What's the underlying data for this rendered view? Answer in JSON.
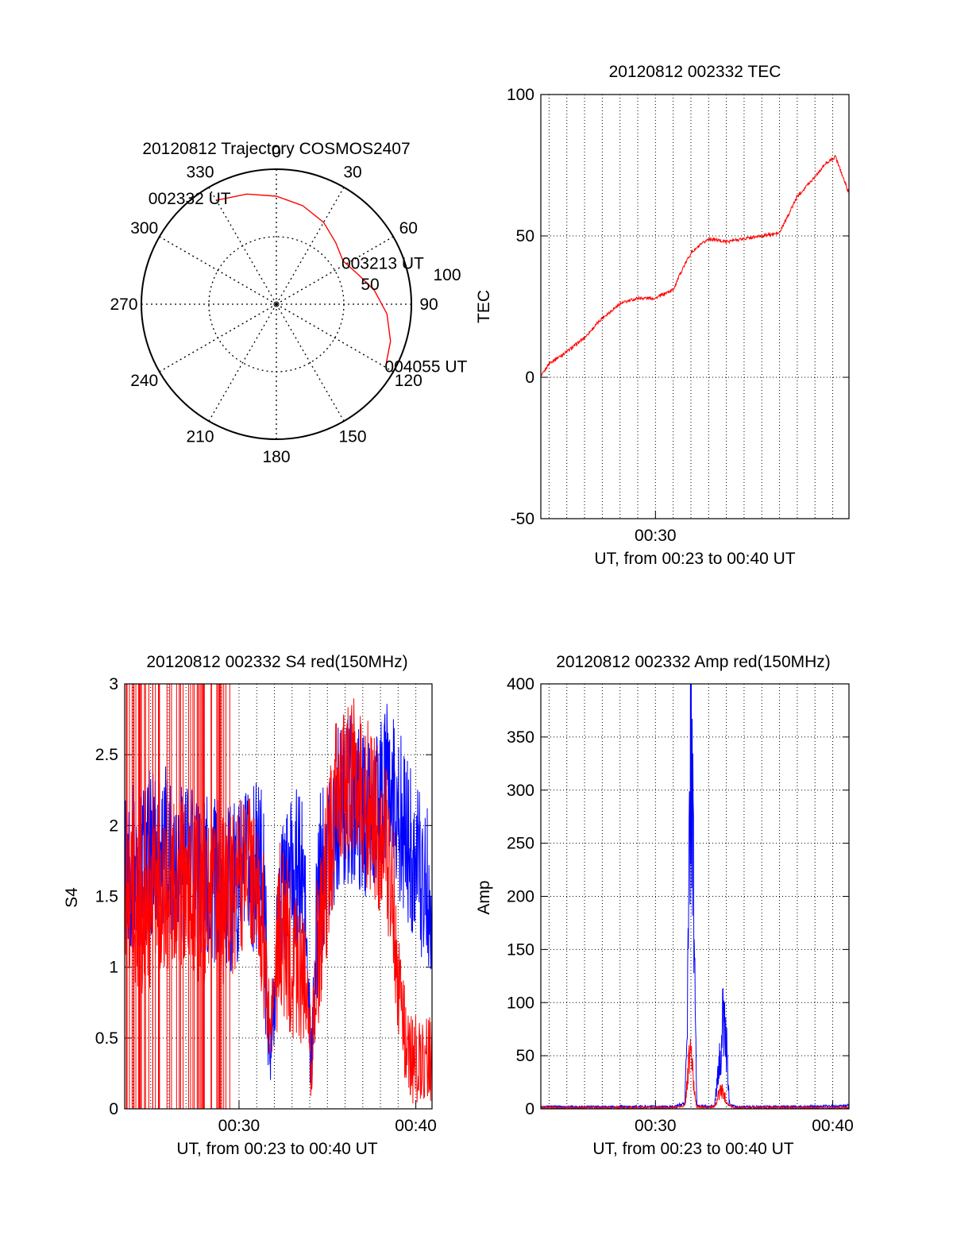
{
  "colors": {
    "red": "#ff0000",
    "blue": "#0000ff",
    "axis": "#000000"
  },
  "chart_data": [
    {
      "id": "trajectory",
      "type": "scatter",
      "projection": "polar",
      "title": "20120812 Trajectory COSMOS2407",
      "azimuth_labels": [
        "0",
        "30",
        "60",
        "90",
        "120",
        "150",
        "180",
        "210",
        "240",
        "270",
        "300",
        "330"
      ],
      "radial_labels": [
        "50",
        "100"
      ],
      "track": [
        {
          "az": 330,
          "el": 10
        },
        {
          "az": 345,
          "el": 14
        },
        {
          "az": 0,
          "el": 18
        },
        {
          "az": 15,
          "el": 22
        },
        {
          "az": 30,
          "el": 27
        },
        {
          "az": 44,
          "el": 33
        },
        {
          "az": 57,
          "el": 37
        },
        {
          "az": 70,
          "el": 32
        },
        {
          "az": 82,
          "el": 24
        },
        {
          "az": 95,
          "el": 16
        },
        {
          "az": 108,
          "el": 10
        },
        {
          "az": 118,
          "el": 7
        }
      ],
      "annotations": [
        {
          "text": "002332 UT",
          "az": 331,
          "el": 10
        },
        {
          "text": "003213 UT",
          "az": 57,
          "el": 37
        },
        {
          "text": "004055 UT",
          "az": 118,
          "el": 7
        }
      ]
    },
    {
      "id": "tec",
      "type": "line",
      "title": "20120812 002332 TEC",
      "ylabel": "TEC",
      "xlabel": "UT, from 00:23 to 00:40 UT",
      "xlim": [
        "00:23:32",
        "00:40:55"
      ],
      "ylim": [
        -50,
        100
      ],
      "yticks": [
        "-50",
        "0",
        "50",
        "100"
      ],
      "xticks": [
        "00:30"
      ],
      "grid": true,
      "series": [
        {
          "color": "#ff0000",
          "x": [
            "00:23:32",
            "00:24:00",
            "00:25:00",
            "00:26:00",
            "00:27:00",
            "00:28:00",
            "00:29:00",
            "00:30:00",
            "00:31:00",
            "00:31:30",
            "00:32:00",
            "00:33:00",
            "00:34:00",
            "00:35:00",
            "00:36:00",
            "00:37:00",
            "00:38:00",
            "00:39:00",
            "00:39:40",
            "00:40:10",
            "00:40:55"
          ],
          "values": [
            0,
            5,
            9,
            14,
            21,
            26,
            28,
            28,
            31,
            38,
            44,
            49,
            48,
            49,
            50,
            51,
            64,
            71,
            76,
            78,
            65
          ]
        }
      ]
    },
    {
      "id": "s4",
      "type": "line",
      "title": "20120812 002332 S4 red(150MHz)",
      "ylabel": "S4",
      "xlabel": "UT, from 00:23 to 00:40 UT",
      "xlim": [
        "00:23:32",
        "00:40:55"
      ],
      "ylim": [
        0,
        3
      ],
      "yticks": [
        "0",
        "0.5",
        "1",
        "1.5",
        "2",
        "2.5",
        "3"
      ],
      "xticks": [
        "00:30",
        "00:40"
      ],
      "grid": true,
      "series": [
        {
          "color": "#0000ff",
          "x": [
            "00:23:32",
            "00:24:30",
            "00:25:30",
            "00:26:30",
            "00:27:30",
            "00:28:30",
            "00:29:30",
            "00:30:30",
            "00:31:20",
            "00:31:45",
            "00:32:20",
            "00:33:00",
            "00:33:40",
            "00:34:05",
            "00:34:30",
            "00:35:30",
            "00:36:30",
            "00:37:30",
            "00:38:30",
            "00:39:30",
            "00:40:55"
          ],
          "values": [
            1.65,
            1.75,
            1.85,
            1.8,
            1.7,
            1.6,
            1.55,
            1.65,
            1.75,
            0.25,
            1.5,
            1.7,
            1.6,
            0.25,
            1.6,
            2.1,
            2.2,
            2.0,
            2.3,
            1.9,
            1.5
          ]
        },
        {
          "color": "#ff0000",
          "x": [
            "00:23:32",
            "00:24:30",
            "00:25:30",
            "00:26:30",
            "00:27:30",
            "00:28:30",
            "00:29:30",
            "00:30:30",
            "00:31:20",
            "00:31:45",
            "00:32:20",
            "00:33:00",
            "00:33:40",
            "00:34:05",
            "00:34:30",
            "00:35:30",
            "00:36:30",
            "00:37:30",
            "00:38:30",
            "00:39:30",
            "00:40:55"
          ],
          "values": [
            1.6,
            1.4,
            1.5,
            1.6,
            1.5,
            1.4,
            1.5,
            1.8,
            1.3,
            0.5,
            1.3,
            1.1,
            1.05,
            0.35,
            1.2,
            2.2,
            2.3,
            2.1,
            1.8,
            0.35,
            0.35
          ]
        }
      ]
    },
    {
      "id": "amp",
      "type": "line",
      "title": "20120812 002332 Amp red(150MHz)",
      "ylabel": "Amp",
      "xlabel": "UT, from 00:23 to 00:40 UT",
      "xlim": [
        "00:23:32",
        "00:40:55"
      ],
      "ylim": [
        0,
        400
      ],
      "yticks": [
        "0",
        "50",
        "100",
        "150",
        "200",
        "250",
        "300",
        "350",
        "400"
      ],
      "xticks": [
        "00:30",
        "00:40"
      ],
      "grid": true,
      "series": [
        {
          "color": "#0000ff",
          "x": [
            "00:23:32",
            "00:30:00",
            "00:31:00",
            "00:31:40",
            "00:31:52",
            "00:32:00",
            "00:32:08",
            "00:32:20",
            "00:33:00",
            "00:33:20",
            "00:33:40",
            "00:33:50",
            "00:34:00",
            "00:34:10",
            "00:34:30",
            "00:36:00",
            "00:38:00",
            "00:40:55"
          ],
          "values": [
            2,
            2,
            2,
            5,
            150,
            390,
            220,
            3,
            2,
            3,
            50,
            90,
            60,
            6,
            2,
            2,
            2,
            3
          ]
        },
        {
          "color": "#ff0000",
          "x": [
            "00:23:32",
            "00:31:00",
            "00:31:40",
            "00:31:52",
            "00:32:00",
            "00:32:08",
            "00:32:20",
            "00:33:00",
            "00:33:20",
            "00:33:40",
            "00:33:50",
            "00:34:00",
            "00:34:10",
            "00:34:30",
            "00:40:55"
          ],
          "values": [
            1,
            1,
            3,
            40,
            60,
            25,
            2,
            1,
            2,
            18,
            15,
            8,
            3,
            1,
            1
          ]
        }
      ]
    }
  ]
}
